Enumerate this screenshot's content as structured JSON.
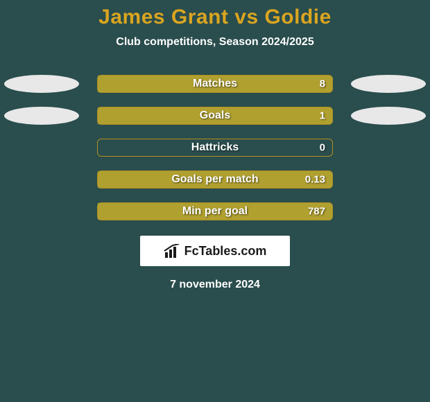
{
  "title": "James Grant vs Goldie",
  "subtitle": "Club competitions, Season 2024/2025",
  "date": "7 november 2024",
  "logo_text": "FcTables.com",
  "colors": {
    "background": "#2a4d4d",
    "title": "#daa520",
    "text": "#ffffff",
    "bar_border": "#b09020",
    "bar_fill": "#b0a030",
    "ellipse_left": "#e8e8e8",
    "ellipse_right": "#e8e8e8",
    "logo_bg": "#ffffff",
    "logo_text": "#1a1a1a"
  },
  "typography": {
    "title_fontsize": 30,
    "subtitle_fontsize": 16,
    "bar_label_fontsize": 16,
    "bar_value_fontsize": 15,
    "date_fontsize": 16,
    "font_family": "Arial"
  },
  "layout": {
    "bar_track_width": 340,
    "bar_track_height": 26,
    "bar_border_radius": 6,
    "ellipse_width": 108,
    "ellipse_height": 26,
    "row_gap": 20
  },
  "stats": [
    {
      "label": "Matches",
      "value": "8",
      "left_pct": 0,
      "right_pct": 100,
      "show_ellipses": true
    },
    {
      "label": "Goals",
      "value": "1",
      "left_pct": 0,
      "right_pct": 100,
      "show_ellipses": true
    },
    {
      "label": "Hattricks",
      "value": "0",
      "left_pct": 0,
      "right_pct": 0,
      "show_ellipses": false
    },
    {
      "label": "Goals per match",
      "value": "0.13",
      "left_pct": 0,
      "right_pct": 100,
      "show_ellipses": false
    },
    {
      "label": "Min per goal",
      "value": "787",
      "left_pct": 0,
      "right_pct": 100,
      "show_ellipses": false
    }
  ]
}
